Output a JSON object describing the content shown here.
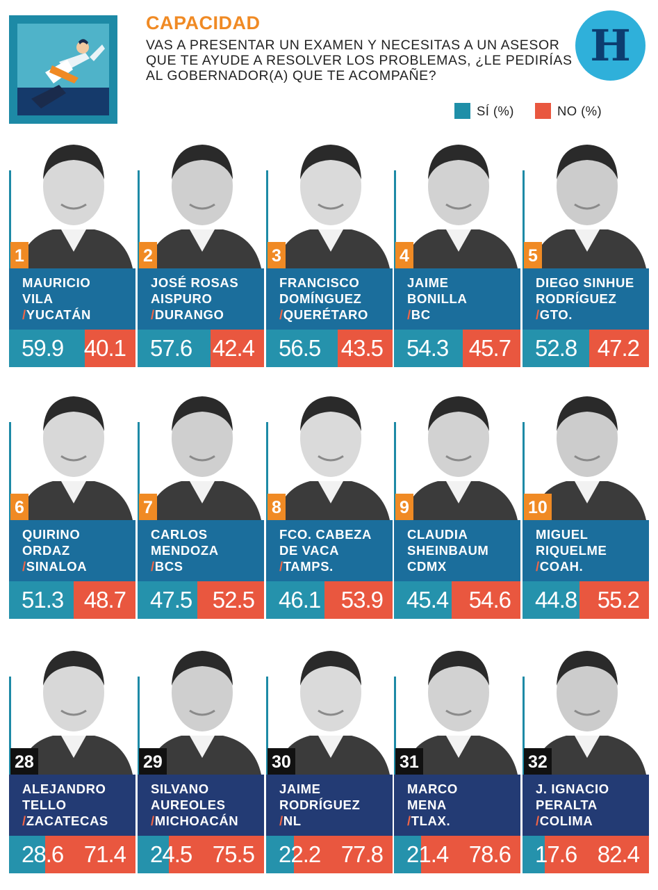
{
  "header": {
    "title": "CAPACIDAD",
    "question_lines": [
      "VAS A PRESENTAR UN EXAMEN Y NECESITAS A UN ASESOR",
      "QUE TE AYUDE A RESOLVER LOS PROBLEMAS, ¿LE PEDIRÍAS",
      "AL GOBERNADOR(A) QUE TE ACOMPAÑE?"
    ],
    "brand_letter": "H"
  },
  "legend": [
    {
      "label": "SÍ (%)",
      "color": "#1f8fa8"
    },
    {
      "label": "NO (%)",
      "color": "#e9573f"
    }
  ],
  "colors": {
    "si": "#2592ac",
    "no": "#e9573f",
    "rank_top": "#f08a24",
    "rank_bottom": "#111111",
    "name_box_top": "#1b6e9c",
    "name_box_bottom": "#233b74",
    "title": "#f08a24",
    "brand_circle": "#2fb0da"
  },
  "chart_data": {
    "type": "bar",
    "series": [
      {
        "name": "SÍ (%)",
        "values": [
          59.9,
          57.6,
          56.5,
          54.3,
          52.8,
          51.3,
          47.5,
          46.1,
          45.4,
          44.8,
          28.6,
          24.5,
          22.2,
          21.4,
          17.6
        ]
      },
      {
        "name": "NO (%)",
        "values": [
          40.1,
          42.4,
          43.5,
          45.7,
          47.2,
          48.7,
          52.5,
          53.9,
          54.6,
          55.2,
          71.4,
          75.5,
          77.8,
          78.6,
          82.4
        ]
      }
    ],
    "categories": [
      "1",
      "2",
      "3",
      "4",
      "5",
      "6",
      "7",
      "8",
      "9",
      "10",
      "28",
      "29",
      "30",
      "31",
      "32"
    ],
    "governors": [
      {
        "rank": "1",
        "name": [
          "MAURICIO",
          "VILA"
        ],
        "state": "YUCATÁN",
        "slash": true,
        "si": 59.9,
        "no": 40.1
      },
      {
        "rank": "2",
        "name": [
          "JOSÉ ROSAS",
          "AISPURO"
        ],
        "state": "DURANGO",
        "slash": true,
        "si": 57.6,
        "no": 42.4
      },
      {
        "rank": "3",
        "name": [
          "FRANCISCO",
          "DOMÍNGUEZ"
        ],
        "state": "QUERÉTARO",
        "slash": true,
        "si": 56.5,
        "no": 43.5
      },
      {
        "rank": "4",
        "name": [
          "JAIME",
          "BONILLA"
        ],
        "state": "BC",
        "slash": true,
        "si": 54.3,
        "no": 45.7
      },
      {
        "rank": "5",
        "name": [
          "DIEGO SINHUE",
          "RODRÍGUEZ"
        ],
        "state": "GTO.",
        "slash": true,
        "si": 52.8,
        "no": 47.2
      },
      {
        "rank": "6",
        "name": [
          "QUIRINO",
          "ORDAZ"
        ],
        "state": "SINALOA",
        "slash": true,
        "si": 51.3,
        "no": 48.7
      },
      {
        "rank": "7",
        "name": [
          "CARLOS",
          "MENDOZA"
        ],
        "state": "BCS",
        "slash": true,
        "si": 47.5,
        "no": 52.5
      },
      {
        "rank": "8",
        "name": [
          "FCO. CABEZA",
          "DE VACA"
        ],
        "state": "TAMPS.",
        "slash": true,
        "si": 46.1,
        "no": 53.9
      },
      {
        "rank": "9",
        "name": [
          "CLAUDIA",
          "SHEINBAUM"
        ],
        "state": "CDMX",
        "slash": false,
        "si": 45.4,
        "no": 54.6
      },
      {
        "rank": "10",
        "name": [
          "MIGUEL",
          "RIQUELME"
        ],
        "state": "COAH.",
        "slash": true,
        "si": 44.8,
        "no": 55.2
      },
      {
        "rank": "28",
        "name": [
          "ALEJANDRO",
          "TELLO"
        ],
        "state": "ZACATECAS",
        "slash": true,
        "si": 28.6,
        "no": 71.4
      },
      {
        "rank": "29",
        "name": [
          "SILVANO",
          "AUREOLES"
        ],
        "state": "MICHOACÁN",
        "slash": true,
        "si": 24.5,
        "no": 75.5
      },
      {
        "rank": "30",
        "name": [
          "JAIME",
          "RODRÍGUEZ"
        ],
        "state": "NL",
        "slash": true,
        "si": 22.2,
        "no": 77.8
      },
      {
        "rank": "31",
        "name": [
          "MARCO",
          "MENA"
        ],
        "state": "TLAX.",
        "slash": true,
        "si": 21.4,
        "no": 78.6
      },
      {
        "rank": "32",
        "name": [
          "J. IGNACIO",
          "PERALTA"
        ],
        "state": "COLIMA",
        "slash": true,
        "si": 17.6,
        "no": 82.4
      }
    ],
    "ylim": [
      0,
      100
    ]
  }
}
